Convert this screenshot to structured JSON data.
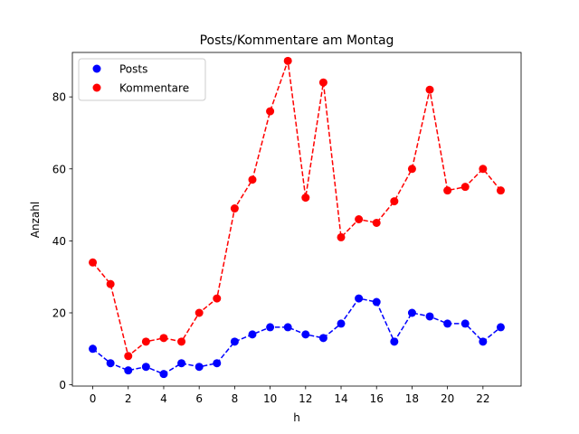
{
  "chart_data": {
    "type": "line",
    "title": "Posts/Kommentare am Montag",
    "xlabel": "h",
    "ylabel": "Anzahl",
    "xlim": [
      -1.15,
      24.15
    ],
    "ylim": [
      -0.35,
      92.35
    ],
    "xticks": [
      "0",
      "2",
      "4",
      "6",
      "8",
      "10",
      "12",
      "14",
      "16",
      "18",
      "20",
      "22"
    ],
    "yticks": [
      "0",
      "20",
      "40",
      "60",
      "80"
    ],
    "grid": false,
    "legend_position": "top-left",
    "x": [
      0,
      1,
      2,
      3,
      4,
      5,
      6,
      7,
      8,
      9,
      10,
      11,
      12,
      13,
      14,
      15,
      16,
      17,
      18,
      19,
      20,
      21,
      22,
      23
    ],
    "series": [
      {
        "name": "Posts",
        "color": "#0000ff",
        "style": "dashed-with-markers",
        "values": [
          10,
          6,
          4,
          5,
          3,
          6,
          5,
          6,
          12,
          14,
          16,
          16,
          14,
          13,
          17,
          24,
          23,
          12,
          20,
          19,
          17,
          17,
          12,
          16
        ]
      },
      {
        "name": "Kommentare",
        "color": "#ff0000",
        "style": "dashed-with-markers",
        "values": [
          34,
          28,
          8,
          12,
          13,
          12,
          20,
          24,
          49,
          57,
          76,
          90,
          52,
          84,
          41,
          46,
          45,
          51,
          60,
          82,
          54,
          55,
          60,
          54
        ]
      }
    ]
  }
}
